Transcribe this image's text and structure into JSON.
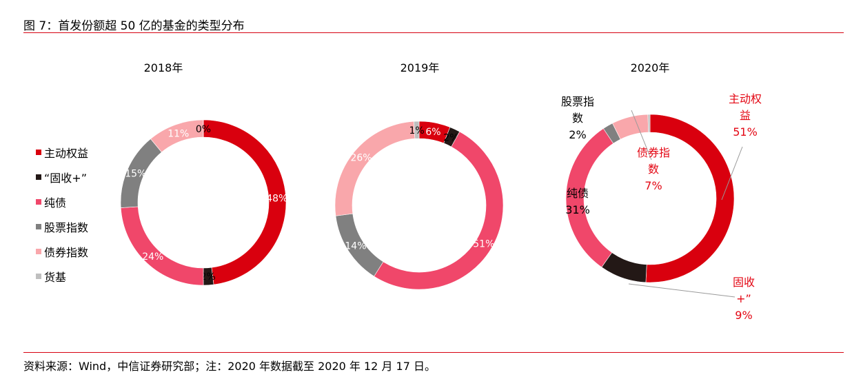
{
  "header": {
    "title": "图 7：首发份额超 50 亿的基金的类型分布"
  },
  "footer": {
    "source": "资料来源：Wind，中信证券研究部；注：2020 年数据截至 2020 年 12 月 17 日。"
  },
  "colors": {
    "accent_rule": "#d7000f",
    "series": [
      "#d9000e",
      "#231816",
      "#f0476a",
      "#808080",
      "#f9a7ab",
      "#bfbfbf"
    ]
  },
  "chart_data": [
    {
      "type": "pie",
      "variant": "donut",
      "title": "2018年",
      "categories": [
        "主动权益",
        "“固收+”",
        "纯债",
        "股票指数",
        "债券指数",
        "货基"
      ],
      "values": [
        48,
        2,
        24,
        15,
        11,
        0
      ],
      "labels": [
        "48%",
        "2%",
        "24%",
        "15%",
        "11%",
        "0%"
      ],
      "legend": "left"
    },
    {
      "type": "pie",
      "variant": "donut",
      "title": "2019年",
      "categories": [
        "主动权益",
        "“固收+”",
        "纯债",
        "股票指数",
        "债券指数",
        "货基"
      ],
      "values": [
        6,
        2,
        51,
        14,
        26,
        1
      ],
      "labels": [
        "6%",
        "2%",
        "51%",
        "14%",
        "26%",
        "1%"
      ]
    },
    {
      "type": "pie",
      "variant": "donut",
      "title": "2020年",
      "categories": [
        "主动权益",
        "“固收+”",
        "纯债",
        "股票指数",
        "债券指数",
        "货基"
      ],
      "values": [
        51,
        9,
        31,
        2,
        7,
        0.4
      ],
      "annotations": [
        {
          "lines": [
            "主动权",
            "益",
            "51%"
          ],
          "color": "red",
          "leader": true
        },
        {
          "lines": [
            "固收",
            "+”",
            "9%"
          ],
          "color": "red",
          "leader": true
        },
        {
          "lines": [
            "纯债",
            "31%"
          ],
          "color": "black",
          "leader": false
        },
        {
          "lines": [
            "股票指",
            "数",
            "2%"
          ],
          "color": "black",
          "leader": false
        },
        {
          "lines": [
            "债券指",
            "数",
            "7%"
          ],
          "color": "red",
          "leader": true
        }
      ]
    }
  ]
}
